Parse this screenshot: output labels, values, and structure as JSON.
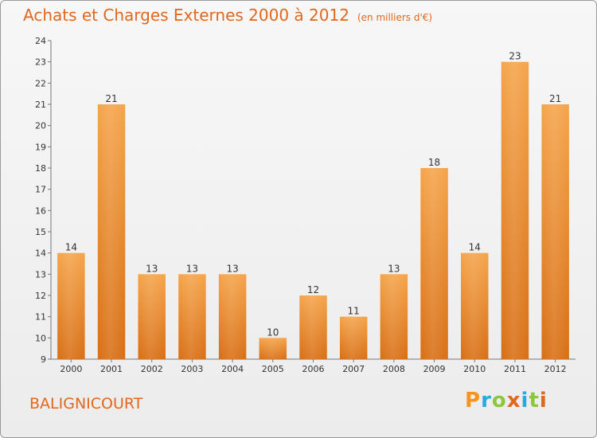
{
  "title": "Achats et Charges Externes 2000 à 2012",
  "unit_note": "(en milliers d'€)",
  "city": "BALIGNICOURT",
  "logo": {
    "letters": [
      "P",
      "r",
      "o",
      "x",
      "i",
      "t",
      "i"
    ],
    "colors": [
      "#f7931e",
      "#27a9e1",
      "#8dc63f",
      "#e2671b",
      "#27a9e1",
      "#8dc63f",
      "#e2671b"
    ]
  },
  "colors": {
    "accent": "#e2671b",
    "bar_top": "#f5a44a",
    "bar_bottom": "#d86f15"
  },
  "chart_data": {
    "type": "bar",
    "title": "Achats et Charges Externes 2000 à 2012",
    "subtitle": "(en milliers d'€)",
    "categories": [
      "2000",
      "2001",
      "2002",
      "2003",
      "2004",
      "2005",
      "2006",
      "2007",
      "2008",
      "2009",
      "2010",
      "2011",
      "2012"
    ],
    "values": [
      14,
      21,
      13,
      13,
      13,
      10,
      12,
      11,
      13,
      18,
      14,
      23,
      21
    ],
    "ylim": [
      9,
      24
    ],
    "yticks": [
      9,
      10,
      11,
      12,
      13,
      14,
      15,
      16,
      17,
      18,
      19,
      20,
      21,
      22,
      23,
      24
    ],
    "grid": false,
    "legend": "none"
  }
}
